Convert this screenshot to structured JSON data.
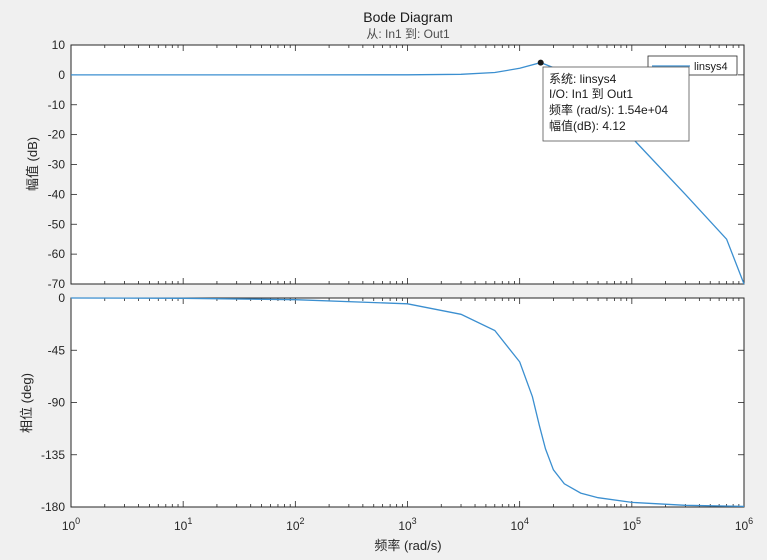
{
  "window_title": "Bode Diagram",
  "subtitle": "从: In1  到: Out1",
  "chart_data": {
    "type": "line",
    "title": "Bode Diagram",
    "subtitle": "从: In1  到: Out1",
    "xlabel": "频率  (rad/s)",
    "x_scale": "log",
    "xlim": [
      1,
      1000000
    ],
    "x_ticks": [
      {
        "value": 1,
        "base": "10",
        "exp": "0"
      },
      {
        "value": 10,
        "base": "10",
        "exp": "1"
      },
      {
        "value": 100,
        "base": "10",
        "exp": "2"
      },
      {
        "value": 1000,
        "base": "10",
        "exp": "3"
      },
      {
        "value": 10000,
        "base": "10",
        "exp": "4"
      },
      {
        "value": 100000,
        "base": "10",
        "exp": "5"
      },
      {
        "value": 1000000,
        "base": "10",
        "exp": "6"
      }
    ],
    "grid": false,
    "legend": {
      "entries": [
        "linsys4"
      ],
      "placement": "top-right"
    },
    "series_color": "#3b8fd0",
    "magnitude": {
      "ylabel": "幅值 (dB)",
      "ylim": [
        -70,
        10
      ],
      "y_ticks": [
        10,
        0,
        -10,
        -20,
        -30,
        -40,
        -50,
        -60,
        -70
      ],
      "x": [
        1,
        100,
        1000,
        3000,
        6000,
        10000,
        15400,
        25000,
        50000,
        100000,
        300000,
        700000,
        1000000
      ],
      "y": [
        0,
        0,
        0.02,
        0.2,
        0.8,
        2.2,
        4.12,
        1.0,
        -9,
        -21,
        -40,
        -55,
        -70
      ]
    },
    "phase": {
      "ylabel": "相位 (deg)",
      "ylim": [
        -180,
        0
      ],
      "y_ticks": [
        0,
        -45,
        -90,
        -135,
        -180
      ],
      "x": [
        1,
        10,
        100,
        1000,
        3000,
        6000,
        10000,
        13000,
        15000,
        17000,
        20000,
        25000,
        35000,
        50000,
        100000,
        300000,
        1000000
      ],
      "y": [
        0,
        -0.3,
        -1.5,
        -5,
        -14,
        -28,
        -55,
        -85,
        -110,
        -130,
        -148,
        -160,
        -168,
        -172,
        -176,
        -178.5,
        -179.5
      ]
    },
    "data_tip": {
      "x": 15400,
      "y": 4.12,
      "lines": [
        "系统: linsys4",
        "I/O: In1 到 Out1",
        "频率 (rad/s): 1.54e+04",
        "幅值(dB): 4.12"
      ]
    }
  }
}
